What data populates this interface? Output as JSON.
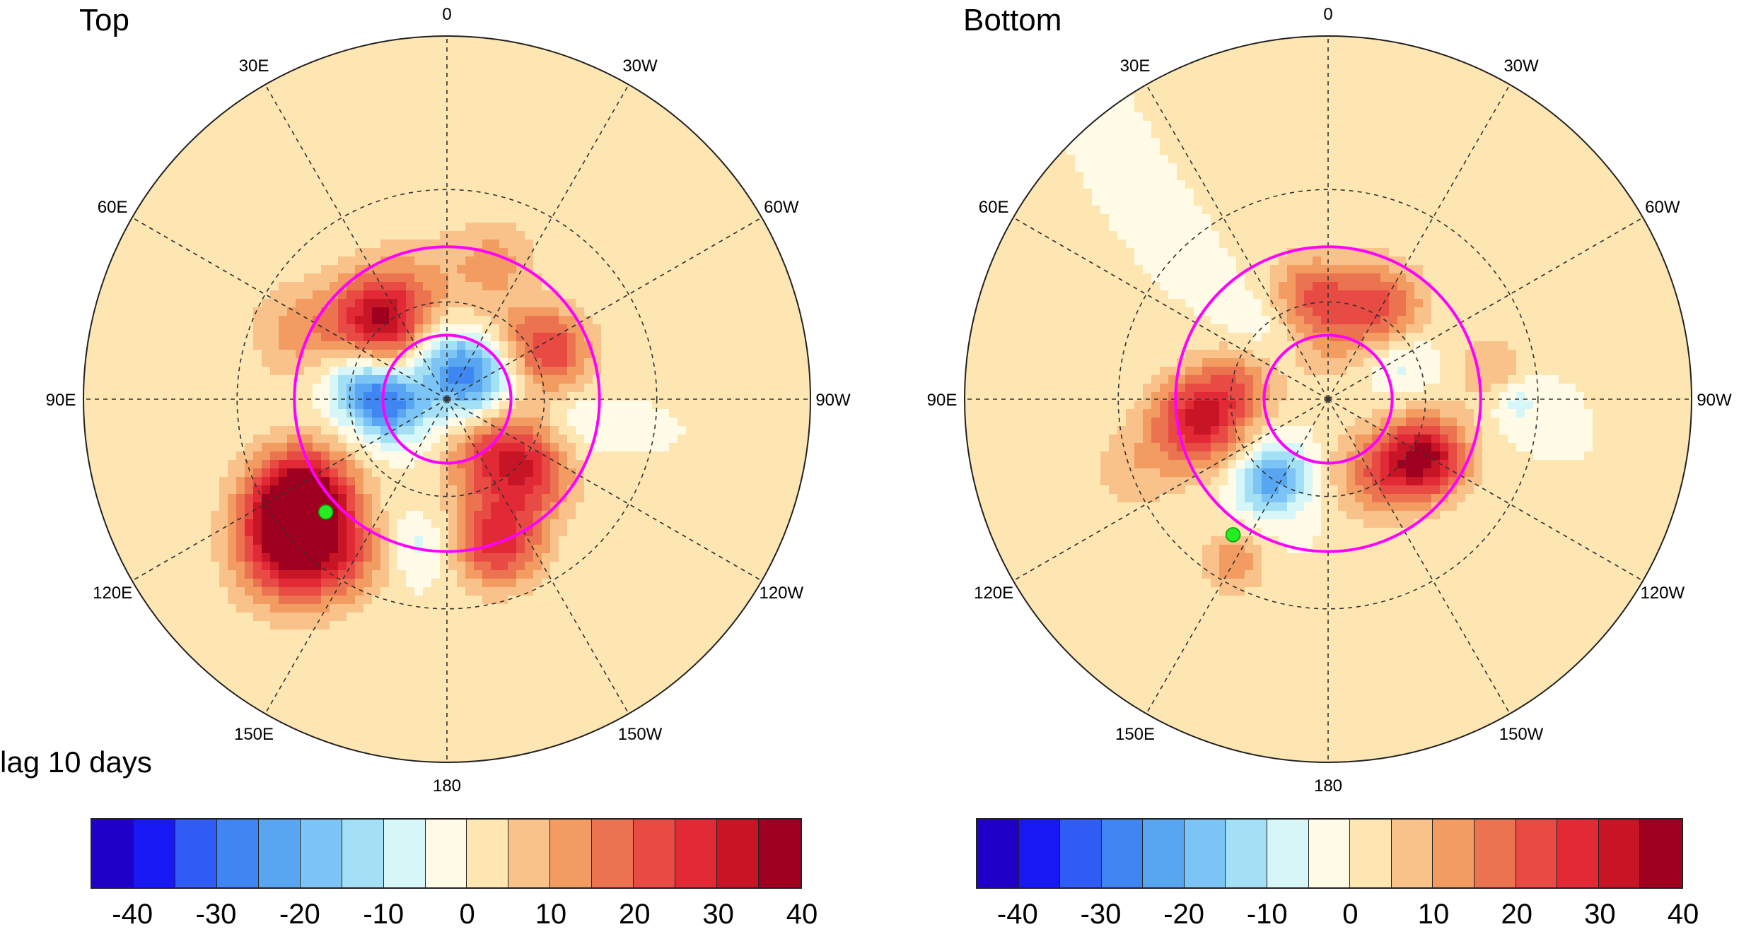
{
  "panels": [
    {
      "id": "top",
      "title": "Top",
      "note": "lag 10 days",
      "marker_lon": 133,
      "marker_lat": 41,
      "anomalies": [
        {
          "lon": 40,
          "lat": 58,
          "value": 32,
          "spread": 9
        },
        {
          "lon": 65,
          "lat": 42,
          "value": 12,
          "spread": 10
        },
        {
          "lon": 10,
          "lat": 55,
          "value": 8,
          "spread": 12
        },
        {
          "lon": -40,
          "lat": 63,
          "value": 8,
          "spread": 8
        },
        {
          "lon": -65,
          "lat": 55,
          "value": 24,
          "spread": 8
        },
        {
          "lon": 80,
          "lat": 62,
          "value": -17,
          "spread": 7
        },
        {
          "lon": 97,
          "lat": 72,
          "value": -24,
          "spread": 7
        },
        {
          "lon": -50,
          "lat": 80,
          "value": -26,
          "spread": 9
        },
        {
          "lon": 0,
          "lat": 75,
          "value": -8,
          "spread": 8
        },
        {
          "lon": 125,
          "lat": 38,
          "value": 45,
          "spread": 10
        },
        {
          "lon": 135,
          "lat": 28,
          "value": 30,
          "spread": 11
        },
        {
          "lon": -160,
          "lat": 45,
          "value": 28,
          "spread": 9
        },
        {
          "lon": -130,
          "lat": 55,
          "value": 22,
          "spread": 8
        },
        {
          "lon": -150,
          "lat": 68,
          "value": 16,
          "spread": 8
        },
        {
          "lon": -120,
          "lat": 70,
          "value": 12,
          "spread": 8
        },
        {
          "lon": 170,
          "lat": 45,
          "value": -8,
          "spread": 6
        },
        {
          "lon": 150,
          "lat": 35,
          "value": 10,
          "spread": 8
        },
        {
          "lon": -100,
          "lat": 50,
          "value": -5,
          "spread": 6
        },
        {
          "lon": -20,
          "lat": 45,
          "value": 10,
          "spread": 8
        }
      ]
    },
    {
      "id": "bottom",
      "title": "Bottom",
      "note": "",
      "marker_lon": 145,
      "marker_lat": 41,
      "anomalies": [
        {
          "lon": 100,
          "lat": 50,
          "value": 30,
          "spread": 9
        },
        {
          "lon": 80,
          "lat": 62,
          "value": 14,
          "spread": 8
        },
        {
          "lon": -120,
          "lat": 55,
          "value": 33,
          "spread": 8
        },
        {
          "lon": -145,
          "lat": 62,
          "value": 18,
          "spread": 9
        },
        {
          "lon": -30,
          "lat": 58,
          "value": 22,
          "spread": 9
        },
        {
          "lon": 10,
          "lat": 58,
          "value": 20,
          "spread": 8
        },
        {
          "lon": -60,
          "lat": 65,
          "value": -10,
          "spread": 7
        },
        {
          "lon": 145,
          "lat": 60,
          "value": -24,
          "spread": 7
        },
        {
          "lon": 150,
          "lat": 35,
          "value": 14,
          "spread": 6
        },
        {
          "lon": -80,
          "lat": 40,
          "value": 10,
          "spread": 7
        },
        {
          "lon": -90,
          "lat": 35,
          "value": -9,
          "spread": 5
        },
        {
          "lon": 40,
          "lat": 60,
          "value": -6,
          "spread": 8
        },
        {
          "lon": 0,
          "lat": 75,
          "value": 6,
          "spread": 8
        },
        {
          "lon": 110,
          "lat": 30,
          "value": 8,
          "spread": 9
        }
      ]
    }
  ],
  "longitude_labels": [
    "0",
    "30W",
    "60W",
    "90W",
    "120W",
    "150W",
    "180",
    "150E",
    "120E",
    "90E",
    "60E",
    "30E"
  ],
  "colorbar": {
    "levels": [
      -45,
      -40,
      -35,
      -30,
      -25,
      -20,
      -15,
      -10,
      -5,
      0,
      5,
      10,
      15,
      20,
      25,
      30,
      35,
      40,
      45
    ],
    "colors": [
      "#1f00c8",
      "#1818f5",
      "#2e5cf5",
      "#3f86f2",
      "#58a6f2",
      "#7bc4f5",
      "#a4e0f5",
      "#d6f6f8",
      "#fffbe6",
      "#fde6b2",
      "#f8c28a",
      "#f39c62",
      "#ec7350",
      "#e84a44",
      "#e12a36",
      "#c81526",
      "#a00020"
    ],
    "tick_labels": [
      "-40",
      "-30",
      "-20",
      "-10",
      "0",
      "10",
      "20",
      "30",
      "40"
    ]
  },
  "colors": {
    "magenta_circle": "#ff00ff",
    "marker": "#22ee22",
    "coast": "#404040"
  }
}
